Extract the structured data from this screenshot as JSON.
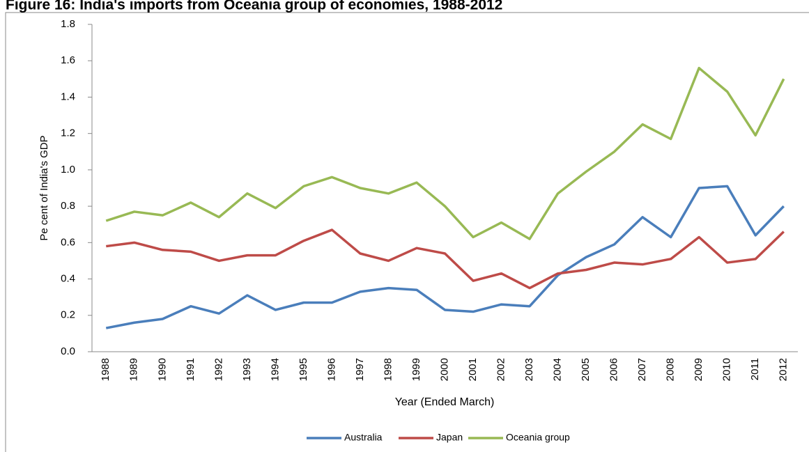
{
  "chart_data": {
    "type": "line",
    "title": "Figure 16: India's imports from Oceania group of economies, 1988-2012",
    "x_label": "Year (Ended March)",
    "y_label": "Pe cent of India's GDP",
    "categories": [
      "1988",
      "1989",
      "1990",
      "1991",
      "1992",
      "1993",
      "1994",
      "1995",
      "1996",
      "1997",
      "1998",
      "1999",
      "2000",
      "2001",
      "2002",
      "2003",
      "2004",
      "2005",
      "2006",
      "2007",
      "2008",
      "2009",
      "2010",
      "2011",
      "2012"
    ],
    "series": [
      {
        "name": "Australia",
        "color": "#4a7ebb",
        "values": [
          0.13,
          0.16,
          0.18,
          0.25,
          0.21,
          0.31,
          0.23,
          0.27,
          0.27,
          0.33,
          0.35,
          0.34,
          0.23,
          0.22,
          0.26,
          0.25,
          0.42,
          0.52,
          0.59,
          0.74,
          0.63,
          0.9,
          0.91,
          0.64,
          0.8
        ]
      },
      {
        "name": "Japan",
        "color": "#be4b48",
        "values": [
          0.58,
          0.6,
          0.56,
          0.55,
          0.5,
          0.53,
          0.53,
          0.61,
          0.67,
          0.54,
          0.5,
          0.57,
          0.54,
          0.39,
          0.43,
          0.35,
          0.43,
          0.45,
          0.49,
          0.48,
          0.51,
          0.63,
          0.49,
          0.51,
          0.66
        ]
      },
      {
        "name": "Oceania group",
        "color": "#98b954",
        "values": [
          0.72,
          0.77,
          0.75,
          0.82,
          0.74,
          0.87,
          0.79,
          0.91,
          0.96,
          0.9,
          0.87,
          0.93,
          0.8,
          0.63,
          0.71,
          0.62,
          0.87,
          0.99,
          1.1,
          1.25,
          1.17,
          1.56,
          1.43,
          1.19,
          1.5
        ]
      }
    ],
    "ylim": [
      0,
      1.8
    ],
    "yticks": [
      {
        "value": 0,
        "label": "0.0"
      },
      0.2,
      0.4,
      0.6,
      0.8,
      {
        "value": 1,
        "label": "1.0"
      },
      1.2,
      1.4,
      1.6,
      1.8
    ],
    "grid": false,
    "legend": "bottom"
  }
}
